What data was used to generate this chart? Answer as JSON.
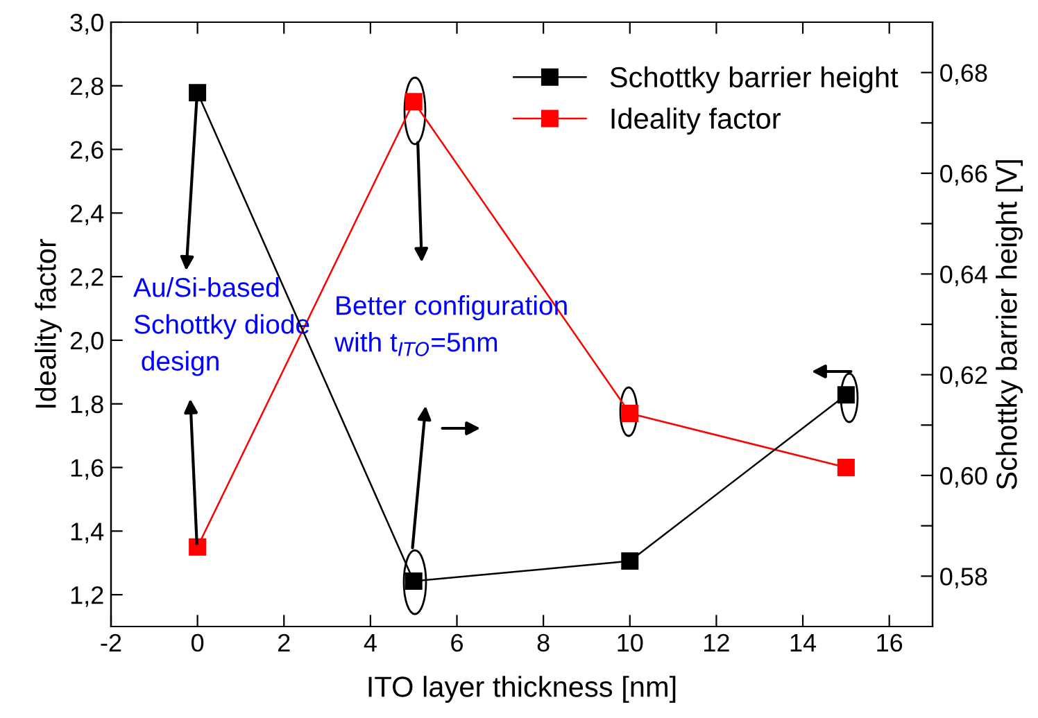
{
  "chart_data": {
    "type": "line",
    "xlabel": "ITO layer thickness [nm]",
    "ylabel": "Ideality factor",
    "y2label": "Schottky barrier height [V]",
    "x": [
      0,
      5,
      10,
      15
    ],
    "series": [
      {
        "name": "Schottky barrier height",
        "color": "#000000",
        "values": [
          0.676,
          0.579,
          0.583,
          0.616
        ],
        "axis": "y2"
      },
      {
        "name": "Ideality factor",
        "color": "#ff0000",
        "values": [
          1.35,
          2.75,
          1.77,
          1.6
        ]
      }
    ],
    "xlim": [
      -2,
      17
    ],
    "xticks": [
      -2,
      0,
      2,
      4,
      6,
      8,
      10,
      12,
      14,
      16
    ],
    "ylim": [
      1.1,
      3.0
    ],
    "yticks": [
      {
        "value": 1.2,
        "label": "1,2"
      },
      {
        "value": 1.4,
        "label": "1,4"
      },
      {
        "value": 1.6,
        "label": "1,6"
      },
      {
        "value": 1.8,
        "label": "1,8"
      },
      {
        "value": 2.0,
        "label": "2,0"
      },
      {
        "value": 2.2,
        "label": "2,2"
      },
      {
        "value": 2.4,
        "label": "2,4"
      },
      {
        "value": 2.6,
        "label": "2,6"
      },
      {
        "value": 2.8,
        "label": "2,8"
      },
      {
        "value": 3.0,
        "label": "3,0"
      }
    ],
    "y2lim": [
      0.57,
      0.69
    ],
    "y2ticks": [
      {
        "value": 0.58,
        "label": "0,58"
      },
      {
        "value": 0.59,
        "label": null
      },
      {
        "value": 0.6,
        "label": "0,60"
      },
      {
        "value": 0.61,
        "label": null
      },
      {
        "value": 0.62,
        "label": "0,62"
      },
      {
        "value": 0.63,
        "label": null
      },
      {
        "value": 0.64,
        "label": "0,64"
      },
      {
        "value": 0.65,
        "label": null
      },
      {
        "value": 0.66,
        "label": "0,66"
      },
      {
        "value": 0.67,
        "label": null
      },
      {
        "value": 0.68,
        "label": "0,68"
      }
    ],
    "annotations": [
      "Au/Si-based\nSchottky diode\n design",
      "Better configuration\nwith t$_{ITO}$=5nm"
    ],
    "marker": "square",
    "line_style": "solid",
    "grid": false,
    "legend": "top right"
  }
}
